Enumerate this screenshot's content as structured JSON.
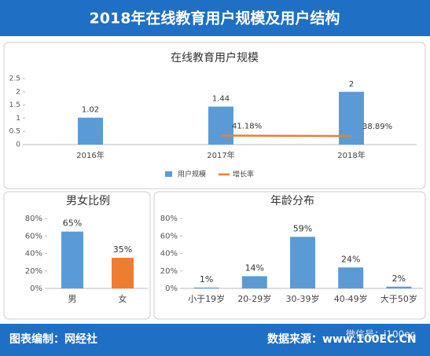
{
  "header": {
    "title": "2018年在线教育用户规模及用户结构"
  },
  "footer": {
    "credit": "图表编制：网经社",
    "source": "数据来源：www.100EC.CN",
    "wechat": "微信号：i100ec"
  },
  "chart_data": [
    {
      "type": "combo",
      "title": "在线教育用户规模",
      "categories": [
        "2016年",
        "2017年",
        "2018年"
      ],
      "series": [
        {
          "name": "用户规模",
          "type": "bar",
          "color": "#5b9bd5",
          "values": [
            1.02,
            1.44,
            2
          ]
        },
        {
          "name": "增长率",
          "type": "line",
          "color": "#ed7d31",
          "axis": "y2",
          "values": [
            null,
            41.18,
            38.89
          ],
          "value_labels": [
            null,
            "41.18%",
            "38.89%"
          ]
        }
      ],
      "ylim": [
        0,
        2.5
      ],
      "yticks": [
        0,
        0.5,
        1,
        1.5,
        2,
        2.5
      ],
      "y2lim": [
        0,
        300
      ],
      "legend": "bottom"
    },
    {
      "type": "bar",
      "title": "男女比例",
      "categories": [
        "男",
        "女"
      ],
      "values": [
        65,
        35
      ],
      "value_labels": [
        "65%",
        "35%"
      ],
      "colors": [
        "#5b9bd5",
        "#ed7d31"
      ],
      "ylim": [
        0,
        80
      ],
      "yticks": [
        {
          "value": 0,
          "label": "0%"
        },
        {
          "value": 20,
          "label": "20%"
        },
        {
          "value": 40,
          "label": "40%"
        },
        {
          "value": 60,
          "label": "60%"
        },
        {
          "value": 80,
          "label": "80%"
        }
      ]
    },
    {
      "type": "bar",
      "title": "年龄分布",
      "categories": [
        "小于19岁",
        "20-29岁",
        "30-39岁",
        "40-49岁",
        "大于50岁"
      ],
      "values": [
        1,
        14,
        59,
        24,
        2
      ],
      "value_labels": [
        "1%",
        "14%",
        "59%",
        "24%",
        "2%"
      ],
      "colors": [
        "#5b9bd5",
        "#5b9bd5",
        "#5b9bd5",
        "#5b9bd5",
        "#5b9bd5"
      ],
      "ylim": [
        0,
        80
      ],
      "yticks": [
        {
          "value": 0,
          "label": "0%"
        },
        {
          "value": 20,
          "label": "20%"
        },
        {
          "value": 40,
          "label": "40%"
        },
        {
          "value": 60,
          "label": "60%"
        },
        {
          "value": 80,
          "label": "80%"
        }
      ]
    }
  ]
}
